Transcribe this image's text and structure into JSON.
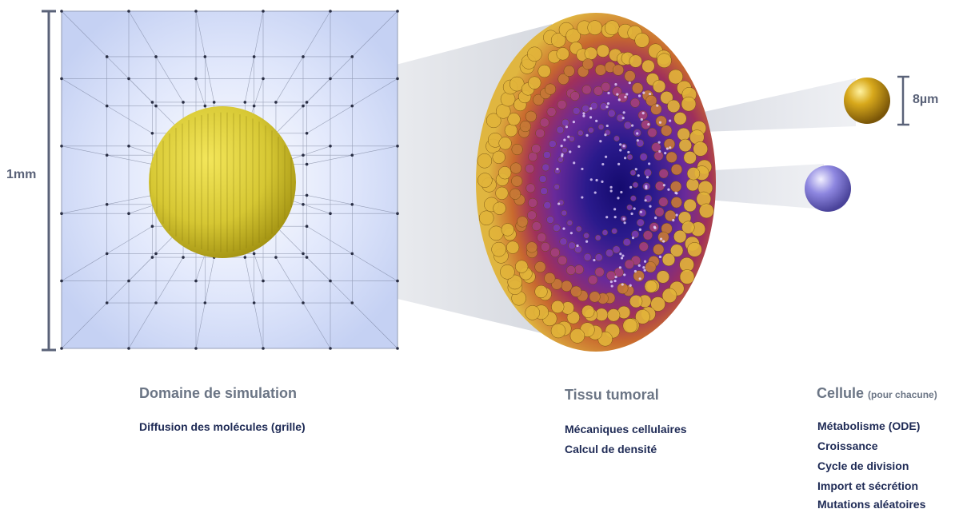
{
  "dimensions": {
    "domain_size": "1mm",
    "cell_size": "8µm"
  },
  "sections": {
    "domain": {
      "title": "Domaine de simulation",
      "items": [
        "Diffusion des molécules (grille)"
      ]
    },
    "tissue": {
      "title": "Tissu tumoral",
      "items": [
        "Mécaniques cellulaires",
        "Calcul de densité"
      ]
    },
    "cell": {
      "title": "Cellule",
      "subtitle": "(pour chacune)",
      "items": [
        "Métabolisme (ODE)",
        "Croissance",
        "Cycle de division",
        "Import et sécrétion",
        "Mutations aléatoires"
      ]
    }
  },
  "colors": {
    "domain_fill": "#d3dcf6",
    "spheroid_core": "#d6c733",
    "tumor_outer": "#d8a534",
    "tumor_mid": "#a0305a",
    "tumor_core": "#2a1a8c",
    "cell_gold": "#c99a12",
    "cell_purple": "#8e87e0",
    "scale_bar": "#5a6278"
  }
}
